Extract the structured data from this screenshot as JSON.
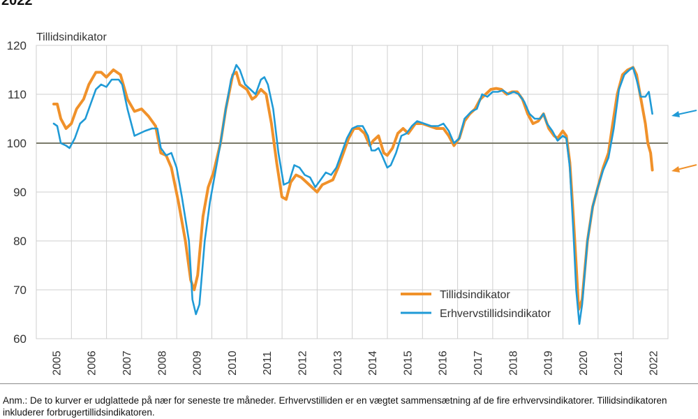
{
  "heading": "2022",
  "footnote": "Anm.: De to kurver er udglattede på nær for seneste tre måneder. Erhvervstilliden er en vægtet sammensætning af de fire erhvervsindikatorer. Tillidsindikatoren inkluderer forbrugertillidsindikatoren.",
  "chart_data": {
    "type": "line",
    "title": "",
    "ylabel": "Tillidsindikator",
    "xlabel": "",
    "ylim": [
      60,
      120
    ],
    "yticks": [
      60,
      70,
      80,
      90,
      100,
      110,
      120
    ],
    "xlim": [
      2005.0,
      2022.2
    ],
    "x_tick_labels": [
      "2005",
      "2006",
      "2007",
      "2008",
      "2009",
      "2010",
      "2011",
      "2012",
      "2013",
      "2014",
      "2015",
      "2016",
      "2017",
      "2018",
      "2019",
      "2020",
      "2021",
      "2022"
    ],
    "reference_line": 100,
    "grid": true,
    "legend_position": "bottom-right",
    "colors": {
      "Tillidsindikator": "#f0912a",
      "Erhvervstillidsindikator": "#1f9ad6",
      "reference": "#7a7a6a",
      "grid": "#cfcfcf"
    },
    "series": [
      {
        "name": "Tillidsindikator",
        "points": [
          [
            2005.0,
            108
          ],
          [
            2005.1,
            108
          ],
          [
            2005.2,
            105
          ],
          [
            2005.35,
            103
          ],
          [
            2005.5,
            104
          ],
          [
            2005.65,
            107
          ],
          [
            2005.85,
            109
          ],
          [
            2006.0,
            112
          ],
          [
            2006.2,
            114.5
          ],
          [
            2006.35,
            114.5
          ],
          [
            2006.5,
            113.5
          ],
          [
            2006.7,
            115
          ],
          [
            2006.9,
            114
          ],
          [
            2007.1,
            109
          ],
          [
            2007.3,
            106.5
          ],
          [
            2007.5,
            107
          ],
          [
            2007.7,
            105.5
          ],
          [
            2007.9,
            103.5
          ],
          [
            2008.05,
            98
          ],
          [
            2008.2,
            97.5
          ],
          [
            2008.35,
            95
          ],
          [
            2008.55,
            88
          ],
          [
            2008.75,
            80
          ],
          [
            2008.9,
            72
          ],
          [
            2009.0,
            70
          ],
          [
            2009.1,
            73
          ],
          [
            2009.25,
            85
          ],
          [
            2009.4,
            91
          ],
          [
            2009.55,
            94
          ],
          [
            2009.75,
            100
          ],
          [
            2009.9,
            107
          ],
          [
            2010.1,
            114
          ],
          [
            2010.2,
            114.5
          ],
          [
            2010.3,
            112
          ],
          [
            2010.5,
            111
          ],
          [
            2010.65,
            109
          ],
          [
            2010.75,
            109.5
          ],
          [
            2010.9,
            111
          ],
          [
            2011.05,
            110
          ],
          [
            2011.2,
            104
          ],
          [
            2011.35,
            96
          ],
          [
            2011.5,
            89
          ],
          [
            2011.62,
            88.5
          ],
          [
            2011.75,
            92
          ],
          [
            2011.9,
            93.5
          ],
          [
            2012.05,
            93
          ],
          [
            2012.2,
            92
          ],
          [
            2012.35,
            91
          ],
          [
            2012.5,
            90
          ],
          [
            2012.65,
            91.5
          ],
          [
            2012.8,
            92
          ],
          [
            2012.95,
            92.5
          ],
          [
            2013.1,
            95
          ],
          [
            2013.25,
            98
          ],
          [
            2013.4,
            101
          ],
          [
            2013.55,
            103
          ],
          [
            2013.7,
            103
          ],
          [
            2013.85,
            102
          ],
          [
            2014.0,
            99.5
          ],
          [
            2014.1,
            100.5
          ],
          [
            2014.25,
            101.5
          ],
          [
            2014.4,
            98
          ],
          [
            2014.5,
            97.5
          ],
          [
            2014.65,
            99
          ],
          [
            2014.8,
            102
          ],
          [
            2014.95,
            103
          ],
          [
            2015.1,
            102
          ],
          [
            2015.3,
            104
          ],
          [
            2015.5,
            104
          ],
          [
            2015.7,
            103.5
          ],
          [
            2015.9,
            103
          ],
          [
            2016.1,
            103
          ],
          [
            2016.25,
            101.5
          ],
          [
            2016.4,
            99.5
          ],
          [
            2016.55,
            101
          ],
          [
            2016.7,
            104.5
          ],
          [
            2016.85,
            106
          ],
          [
            2017.0,
            107
          ],
          [
            2017.15,
            109
          ],
          [
            2017.3,
            110
          ],
          [
            2017.45,
            111
          ],
          [
            2017.6,
            111.2
          ],
          [
            2017.75,
            111
          ],
          [
            2017.9,
            110
          ],
          [
            2018.05,
            110.5
          ],
          [
            2018.2,
            110.5
          ],
          [
            2018.35,
            109
          ],
          [
            2018.5,
            106
          ],
          [
            2018.65,
            104
          ],
          [
            2018.8,
            104.5
          ],
          [
            2018.95,
            106
          ],
          [
            2019.1,
            103
          ],
          [
            2019.25,
            101.5
          ],
          [
            2019.35,
            101
          ],
          [
            2019.5,
            102.5
          ],
          [
            2019.6,
            101.5
          ],
          [
            2019.7,
            96
          ],
          [
            2019.8,
            85
          ],
          [
            2019.88,
            75
          ],
          [
            2019.95,
            66
          ],
          [
            2020.05,
            68
          ],
          [
            2020.2,
            80
          ],
          [
            2020.35,
            87
          ],
          [
            2020.5,
            91
          ],
          [
            2020.65,
            95
          ],
          [
            2020.8,
            98
          ],
          [
            2020.9,
            103
          ],
          [
            2021.05,
            110
          ],
          [
            2021.2,
            114
          ],
          [
            2021.35,
            115
          ],
          [
            2021.5,
            115.5
          ],
          [
            2021.6,
            114
          ],
          [
            2021.7,
            110
          ],
          [
            2021.85,
            104
          ],
          [
            2021.92,
            100
          ],
          [
            2022.0,
            98
          ],
          [
            2022.05,
            94.5
          ]
        ]
      },
      {
        "name": "Erhvervstillidsindikator",
        "points": [
          [
            2005.0,
            104
          ],
          [
            2005.1,
            103.5
          ],
          [
            2005.2,
            100
          ],
          [
            2005.35,
            99.5
          ],
          [
            2005.45,
            99
          ],
          [
            2005.6,
            101
          ],
          [
            2005.75,
            104
          ],
          [
            2005.9,
            105
          ],
          [
            2006.05,
            108
          ],
          [
            2006.2,
            111
          ],
          [
            2006.35,
            112
          ],
          [
            2006.5,
            111.5
          ],
          [
            2006.65,
            113
          ],
          [
            2006.85,
            113
          ],
          [
            2006.95,
            112
          ],
          [
            2007.1,
            107
          ],
          [
            2007.3,
            101.5
          ],
          [
            2007.45,
            102
          ],
          [
            2007.6,
            102.5
          ],
          [
            2007.8,
            103
          ],
          [
            2007.95,
            103
          ],
          [
            2008.05,
            99
          ],
          [
            2008.2,
            97.5
          ],
          [
            2008.35,
            98
          ],
          [
            2008.5,
            95
          ],
          [
            2008.65,
            89
          ],
          [
            2008.85,
            80
          ],
          [
            2008.95,
            68
          ],
          [
            2009.05,
            65
          ],
          [
            2009.15,
            67
          ],
          [
            2009.3,
            80
          ],
          [
            2009.45,
            88
          ],
          [
            2009.6,
            94
          ],
          [
            2009.75,
            100
          ],
          [
            2009.9,
            107
          ],
          [
            2010.05,
            113
          ],
          [
            2010.2,
            116
          ],
          [
            2010.3,
            115
          ],
          [
            2010.45,
            112
          ],
          [
            2010.6,
            111
          ],
          [
            2010.75,
            110
          ],
          [
            2010.9,
            113
          ],
          [
            2011.0,
            113.5
          ],
          [
            2011.1,
            112
          ],
          [
            2011.25,
            107
          ],
          [
            2011.4,
            98
          ],
          [
            2011.55,
            91.5
          ],
          [
            2011.7,
            92
          ],
          [
            2011.85,
            95.5
          ],
          [
            2012.0,
            95
          ],
          [
            2012.15,
            93.5
          ],
          [
            2012.3,
            93
          ],
          [
            2012.45,
            91
          ],
          [
            2012.6,
            92.5
          ],
          [
            2012.75,
            94
          ],
          [
            2012.9,
            93.5
          ],
          [
            2013.05,
            95
          ],
          [
            2013.2,
            98
          ],
          [
            2013.35,
            101
          ],
          [
            2013.5,
            103
          ],
          [
            2013.65,
            103.5
          ],
          [
            2013.8,
            103.5
          ],
          [
            2013.95,
            101.5
          ],
          [
            2014.05,
            98.5
          ],
          [
            2014.15,
            98.5
          ],
          [
            2014.25,
            99
          ],
          [
            2014.35,
            97.5
          ],
          [
            2014.5,
            95
          ],
          [
            2014.6,
            95.5
          ],
          [
            2014.75,
            98
          ],
          [
            2014.9,
            101.5
          ],
          [
            2015.05,
            102
          ],
          [
            2015.2,
            103.5
          ],
          [
            2015.35,
            104.5
          ],
          [
            2015.55,
            104
          ],
          [
            2015.75,
            103.5
          ],
          [
            2015.95,
            103.5
          ],
          [
            2016.1,
            104
          ],
          [
            2016.25,
            102.5
          ],
          [
            2016.4,
            100
          ],
          [
            2016.55,
            101
          ],
          [
            2016.7,
            105
          ],
          [
            2016.9,
            106.5
          ],
          [
            2017.05,
            107
          ],
          [
            2017.2,
            110
          ],
          [
            2017.35,
            109.5
          ],
          [
            2017.5,
            110.5
          ],
          [
            2017.65,
            110.5
          ],
          [
            2017.8,
            110.8
          ],
          [
            2017.95,
            110
          ],
          [
            2018.1,
            110.5
          ],
          [
            2018.25,
            110
          ],
          [
            2018.4,
            108.5
          ],
          [
            2018.55,
            106
          ],
          [
            2018.7,
            105
          ],
          [
            2018.85,
            105
          ],
          [
            2018.95,
            106
          ],
          [
            2019.05,
            104
          ],
          [
            2019.2,
            102.5
          ],
          [
            2019.35,
            100.5
          ],
          [
            2019.5,
            101.5
          ],
          [
            2019.6,
            101
          ],
          [
            2019.7,
            95
          ],
          [
            2019.8,
            82
          ],
          [
            2019.88,
            70
          ],
          [
            2019.97,
            63
          ],
          [
            2020.05,
            67
          ],
          [
            2020.2,
            80
          ],
          [
            2020.35,
            87
          ],
          [
            2020.5,
            91
          ],
          [
            2020.65,
            94.5
          ],
          [
            2020.8,
            97
          ],
          [
            2020.95,
            103
          ],
          [
            2021.1,
            111
          ],
          [
            2021.25,
            114
          ],
          [
            2021.4,
            115
          ],
          [
            2021.5,
            115.5
          ],
          [
            2021.6,
            113
          ],
          [
            2021.72,
            109.5
          ],
          [
            2021.85,
            109.5
          ],
          [
            2021.95,
            110.5
          ],
          [
            2022.05,
            106
          ]
        ]
      }
    ]
  }
}
